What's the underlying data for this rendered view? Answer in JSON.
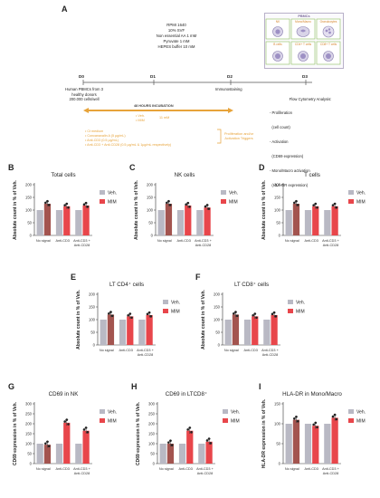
{
  "panel_labels": [
    "A",
    "B",
    "C",
    "D",
    "E",
    "F",
    "G",
    "H",
    "I"
  ],
  "schematic": {
    "medium_lines": [
      "RPMI 1640",
      "10% SVF",
      "Non essential AA 1 mM",
      "Pyruvate 1 mM",
      "HEPES buffer 10 mM"
    ],
    "timepoints": [
      "D0",
      "D1",
      "D2",
      "D3"
    ],
    "d0_lines": [
      "Human PBMCs from 3",
      "healthy donors",
      "200.000 cells/well"
    ],
    "d2_label": "Immunostaining",
    "flow_lines": [
      "Flow Cytometry Analysis:",
      "- Proliferation",
      "  (cell count)",
      "- Activation",
      "  (CD69 expression)",
      "- Mono/Macro activation",
      "  (HLA-DR expression)"
    ],
    "incubation_label": "48 HOURS INCUBATION",
    "incubation_items": [
      "Veh.",
      "MIM"
    ],
    "incubation_dose": "11 mM",
    "trigger_lines": [
      "Ct medium",
      "Concanavalin A (5 µg/mL)",
      "Anti-CD3 (0.5 µg/mL)",
      "Anti-CD3 + Anti-CD28 (0.5 µg/mL & 1µg/mL respectively)"
    ],
    "trigger_label": [
      "Proliferation and/or",
      "Activation Triggers"
    ],
    "pbmc_box": {
      "title": "PBMCs",
      "cells": [
        "NK",
        "Mono/Macro",
        "Granulocytes",
        "B cells",
        "CD4+ T cells",
        "CD8+ T cells"
      ]
    }
  },
  "colors": {
    "veh": "#b9b9c4",
    "mim": "#e8464b",
    "mim_dark": "#a3544f",
    "accent": "#e7a33a"
  },
  "legend": {
    "veh": "Veh.",
    "mim": "MIM"
  },
  "chart_data": [
    {
      "id": "B",
      "type": "bar",
      "title": "Total cells",
      "ylabel": "Absolute count in % of Veh.",
      "ylim": [
        0,
        200
      ],
      "yticks": [
        0,
        50,
        100,
        150,
        200
      ],
      "categories": [
        "No signal",
        "Anti-CD3",
        "Anti-CD3 + Anti-CD28"
      ],
      "series": [
        {
          "name": "Veh.",
          "values": [
            100,
            100,
            100
          ]
        },
        {
          "name": "MIM",
          "values": [
            125,
            115,
            118
          ]
        }
      ]
    },
    {
      "id": "C",
      "type": "bar",
      "title": "NK cells",
      "ylabel": "Absolute count in % of Veh.",
      "ylim": [
        0,
        200
      ],
      "yticks": [
        0,
        50,
        100,
        150,
        200
      ],
      "categories": [
        "No signal",
        "Anti-CD3",
        "Anti-CD3 + Anti-CD28"
      ],
      "series": [
        {
          "name": "Veh.",
          "values": [
            100,
            100,
            100
          ]
        },
        {
          "name": "MIM",
          "values": [
            125,
            118,
            110
          ]
        }
      ]
    },
    {
      "id": "D",
      "type": "bar",
      "title": "T cells",
      "ylabel": "Absolute count in % of Veh.",
      "ylim": [
        0,
        200
      ],
      "yticks": [
        0,
        50,
        100,
        150,
        200
      ],
      "categories": [
        "No signal",
        "Anti-CD3",
        "Anti-CD3 + Anti-CD28"
      ],
      "series": [
        {
          "name": "Veh.",
          "values": [
            100,
            100,
            100
          ]
        },
        {
          "name": "MIM",
          "values": [
            125,
            115,
            115
          ]
        }
      ]
    },
    {
      "id": "E",
      "type": "bar",
      "title": "LT CD4⁺ cells",
      "ylabel": "Absolute count in % of Veh.",
      "ylim": [
        0,
        200
      ],
      "yticks": [
        0,
        50,
        100,
        150,
        200
      ],
      "categories": [
        "No signal",
        "Anti-CD3",
        "Anti-CD3 + Anti-CD28"
      ],
      "series": [
        {
          "name": "Veh.",
          "values": [
            100,
            100,
            100
          ]
        },
        {
          "name": "MIM",
          "values": [
            120,
            113,
            118
          ]
        }
      ]
    },
    {
      "id": "F",
      "type": "bar",
      "title": "LT CD8⁺ cells",
      "ylabel": "Absolute count in % of Veh.",
      "ylim": [
        0,
        200
      ],
      "yticks": [
        0,
        50,
        100,
        150,
        200
      ],
      "categories": [
        "No signal",
        "Anti-CD3",
        "Anti-CD3 + Anti-CD28"
      ],
      "series": [
        {
          "name": "Veh.",
          "values": [
            100,
            100,
            100
          ]
        },
        {
          "name": "MIM",
          "values": [
            120,
            113,
            118
          ]
        }
      ]
    },
    {
      "id": "G",
      "type": "bar",
      "title": "CD69 in NK",
      "ylabel": "CD69 expression in % of Veh.",
      "ylim": [
        0,
        300
      ],
      "yticks": [
        0,
        50,
        100,
        150,
        200,
        250,
        300
      ],
      "categories": [
        "No signal",
        "Anti-CD3",
        "Anti-CD3 + Anti-CD28"
      ],
      "series": [
        {
          "name": "Veh.",
          "values": [
            100,
            100,
            100
          ]
        },
        {
          "name": "MIM",
          "values": [
            95,
            205,
            165
          ]
        }
      ]
    },
    {
      "id": "H",
      "type": "bar",
      "title": "CD69 in LTCD8⁺",
      "ylabel": "CD69 expression in % of Veh.",
      "ylim": [
        0,
        300
      ],
      "yticks": [
        0,
        50,
        100,
        150,
        200,
        250,
        300
      ],
      "categories": [
        "No signal",
        "Anti-CD3",
        "Anti-CD3 + Anti-CD28"
      ],
      "series": [
        {
          "name": "Veh.",
          "values": [
            100,
            100,
            100
          ]
        },
        {
          "name": "MIM",
          "values": [
            100,
            165,
            110
          ]
        }
      ]
    },
    {
      "id": "I",
      "type": "bar",
      "title": "HLA-DR in Mono/Macro",
      "ylabel": "HLA-DR expression in % of Veh.",
      "ylim": [
        0,
        150
      ],
      "yticks": [
        0,
        50,
        100,
        150
      ],
      "categories": [
        "No signal",
        "Anti-CD3",
        "Anti-CD3 + Anti-CD28"
      ],
      "series": [
        {
          "name": "Veh.",
          "values": [
            100,
            100,
            100
          ]
        },
        {
          "name": "MIM",
          "values": [
            110,
            95,
            115
          ]
        }
      ]
    }
  ]
}
